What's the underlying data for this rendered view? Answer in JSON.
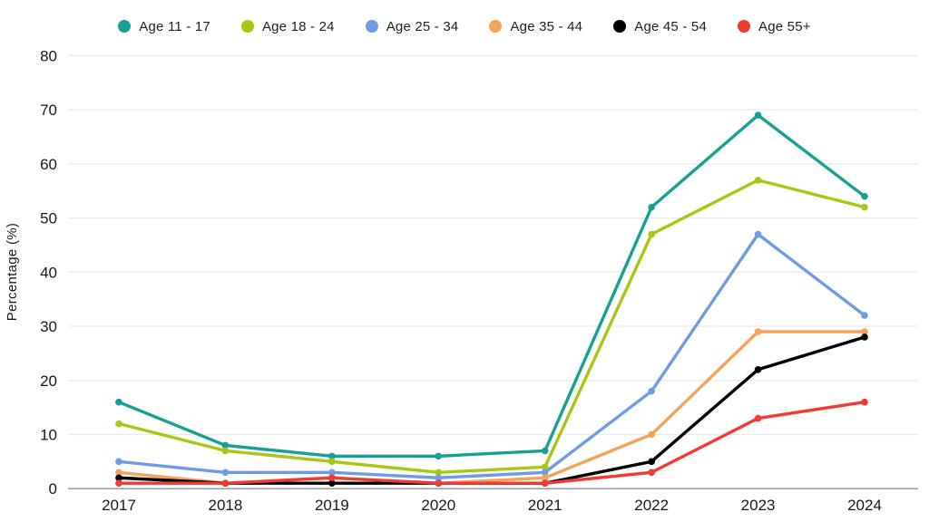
{
  "chart_data": {
    "type": "line",
    "title": "",
    "xlabel": "",
    "ylabel": "Percentage (%)",
    "x": [
      "2017",
      "2018",
      "2019",
      "2020",
      "2021",
      "2022",
      "2023",
      "2024"
    ],
    "series": [
      {
        "name": "Age 11 - 17",
        "color": "#18a193",
        "values": [
          16,
          8,
          6,
          6,
          7,
          52,
          69,
          54
        ]
      },
      {
        "name": "Age 18 - 24",
        "color": "#a8c714",
        "values": [
          12,
          7,
          5,
          3,
          4,
          47,
          57,
          52
        ]
      },
      {
        "name": "Age 25 - 34",
        "color": "#6f9be4",
        "values": [
          5,
          3,
          3,
          2,
          3,
          18,
          47,
          32
        ]
      },
      {
        "name": "Age 35 - 44",
        "color": "#f5a35b",
        "values": [
          3,
          1,
          2,
          1,
          2,
          10,
          29,
          29
        ]
      },
      {
        "name": "Age 45 - 54",
        "color": "#000000",
        "values": [
          2,
          1,
          1,
          1,
          1,
          5,
          22,
          28
        ]
      },
      {
        "name": "Age 55+",
        "color": "#ee3b33",
        "values": [
          1,
          1,
          2,
          1,
          1,
          3,
          13,
          16
        ]
      }
    ],
    "ylim": [
      0,
      80
    ],
    "yticks": [
      0,
      10,
      20,
      30,
      40,
      50,
      60,
      70,
      80
    ],
    "grid": "horizontal-only",
    "legend_position": "top",
    "colors": {
      "grid_line": "#e9eaec",
      "axis_line": "#8d929b",
      "tick_text": "#15181d",
      "background": "#ffffff"
    }
  }
}
